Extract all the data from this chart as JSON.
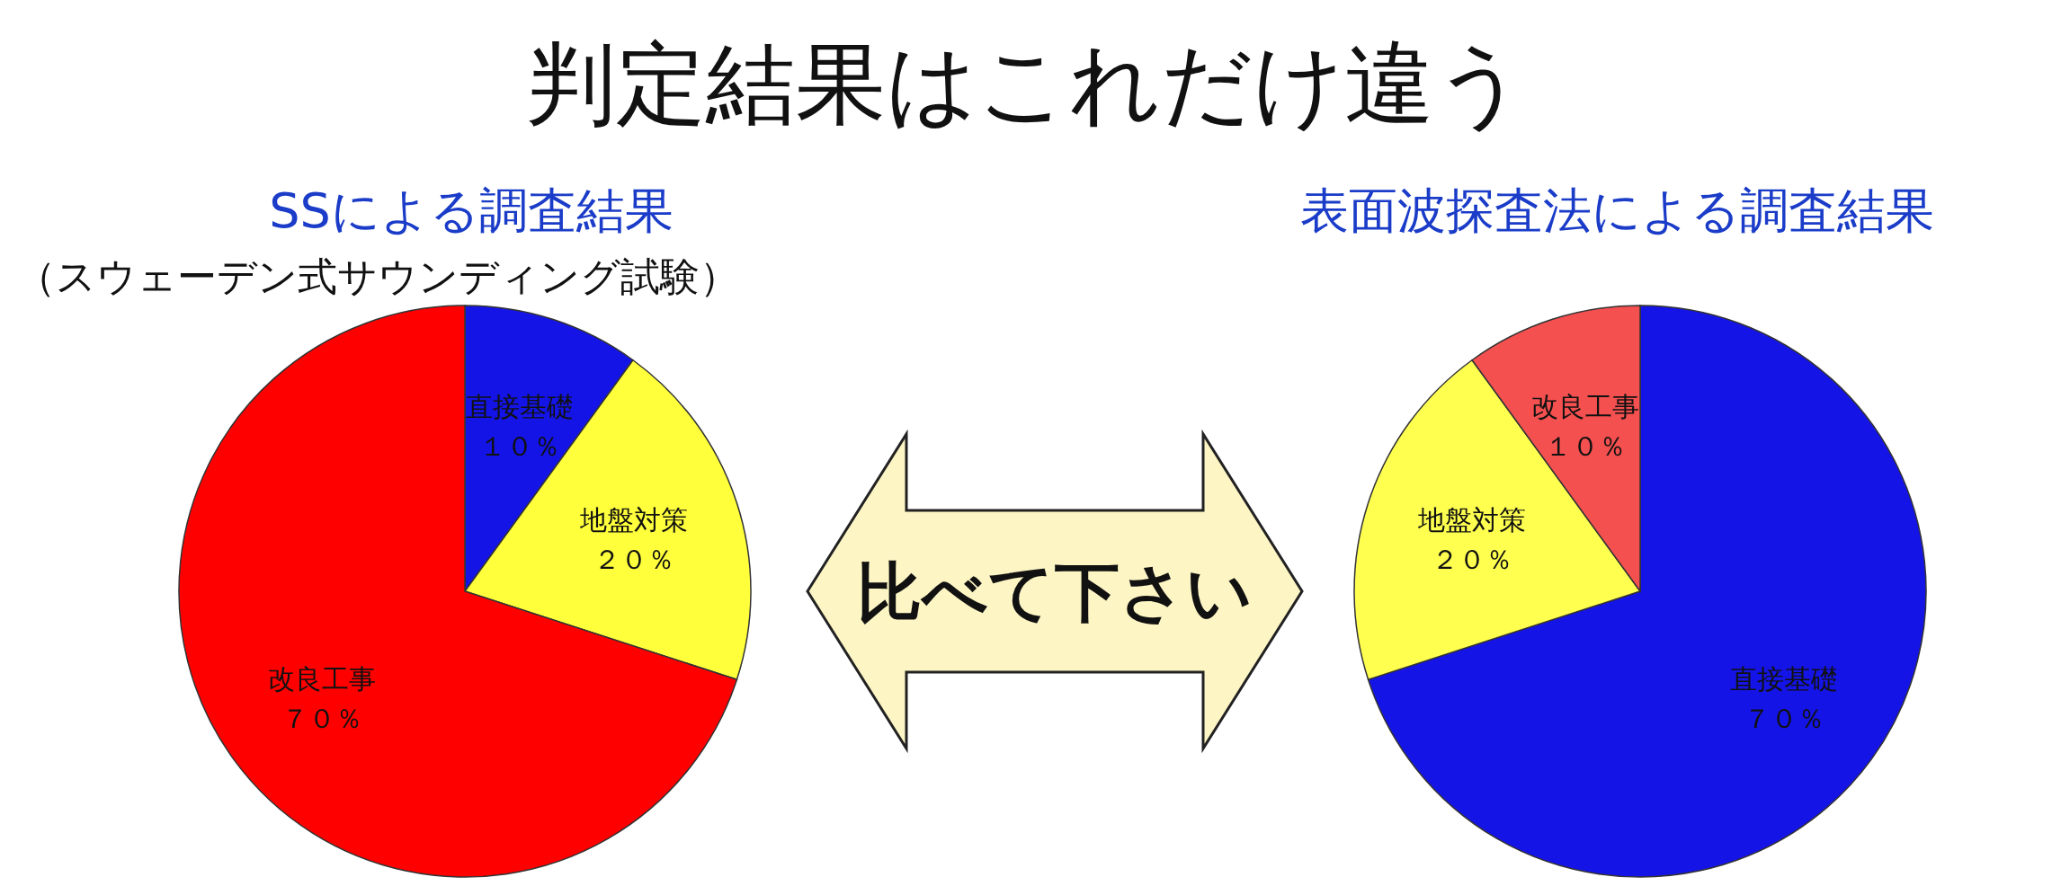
{
  "chart_data": [
    {
      "type": "other",
      "title": "判定結果はこれだけ違う",
      "annotations": [
        "比べて下さい"
      ]
    },
    {
      "type": "pie",
      "title": "SSによる調査結果",
      "subtitle": "（スウェーデン式サウンディング試験）",
      "categories": [
        "直接基礎",
        "地盤対策",
        "改良工事"
      ],
      "values": [
        10,
        20,
        70
      ],
      "colors": [
        "#1414e6",
        "#ffff3c",
        "#ff0000"
      ],
      "value_labels": [
        "１０％",
        "２０％",
        "７０％"
      ]
    },
    {
      "type": "pie",
      "title": "表面波探査法による調査結果",
      "categories": [
        "直接基礎",
        "地盤対策",
        "改良工事"
      ],
      "values": [
        70,
        20,
        10
      ],
      "colors": [
        "#1414e6",
        "#ffff50",
        "#f55050"
      ],
      "value_labels": [
        "７０％",
        "２０％",
        "１０％"
      ]
    }
  ]
}
